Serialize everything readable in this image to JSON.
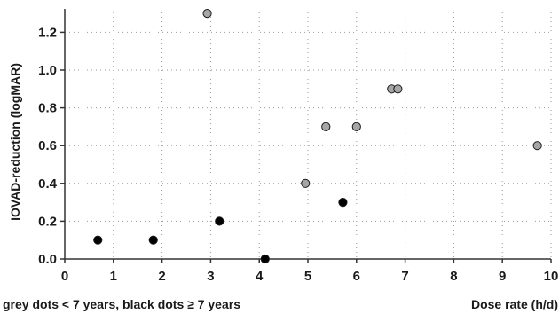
{
  "chart_data": {
    "type": "scatter",
    "title": "",
    "xlabel": "Dose rate (h/d)",
    "ylabel": "IOVAD-reduction (logMAR)",
    "footnote": "grey dots < 7 years, black dots ≥ 7 years",
    "xlim": [
      0,
      10
    ],
    "ylim": [
      0,
      1.3
    ],
    "x_ticks": [
      "0",
      "1",
      "2",
      "3",
      "4",
      "5",
      "6",
      "7",
      "8",
      "9",
      "10"
    ],
    "y_ticks": [
      "0.0",
      "0.2",
      "0.4",
      "0.6",
      "0.8",
      "1.0",
      "1.2"
    ],
    "grid": true,
    "series": [
      {
        "name": "< 7 years",
        "color": "#a6a6a6",
        "points": [
          {
            "x": 2.93,
            "y": 1.3
          },
          {
            "x": 4.95,
            "y": 0.4
          },
          {
            "x": 5.37,
            "y": 0.7
          },
          {
            "x": 6.0,
            "y": 0.7
          },
          {
            "x": 6.72,
            "y": 0.9
          },
          {
            "x": 6.85,
            "y": 0.9
          },
          {
            "x": 9.72,
            "y": 0.6
          }
        ]
      },
      {
        "name": "≥ 7 years",
        "color": "#000000",
        "points": [
          {
            "x": 0.68,
            "y": 0.1
          },
          {
            "x": 1.82,
            "y": 0.1
          },
          {
            "x": 3.18,
            "y": 0.2
          },
          {
            "x": 4.12,
            "y": 0.0
          },
          {
            "x": 5.72,
            "y": 0.3
          }
        ]
      }
    ]
  }
}
